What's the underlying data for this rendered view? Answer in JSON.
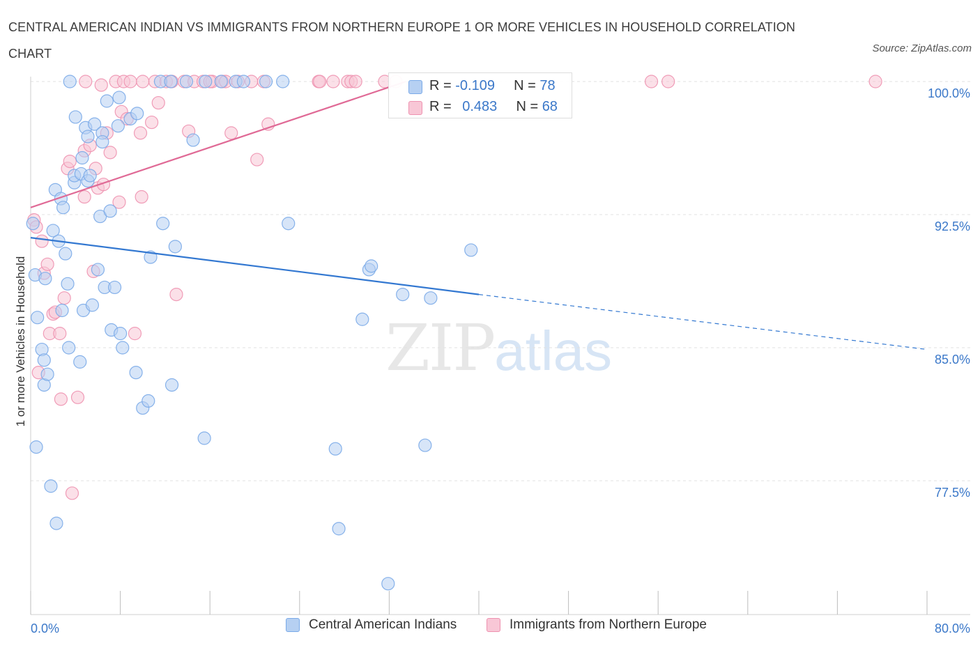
{
  "title": "CENTRAL AMERICAN INDIAN VS IMMIGRANTS FROM NORTHERN EUROPE 1 OR MORE VEHICLES IN HOUSEHOLD CORRELATION CHART",
  "source": "Source: ZipAtlas.com",
  "watermark": {
    "zip": "ZIP",
    "atlas": "atlas"
  },
  "colors": {
    "blue": "#7aaae8",
    "blue_fill": "#b6d0f2",
    "blue_line": "#3378d1",
    "pink": "#ee92b0",
    "pink_fill": "#f8c7d6",
    "pink_line": "#e06a96",
    "axis_text": "#3b78c9",
    "grid": "#e0e0e0"
  },
  "stats": [
    {
      "series": "Central American Indians",
      "r_label": "R =",
      "r_value": "-0.109",
      "n_label": "N =",
      "n_value": "78"
    },
    {
      "series": "Immigrants from Northern Europe",
      "r_label": "R =",
      "r_value": "0.483",
      "n_label": "N =",
      "n_value": "68"
    }
  ],
  "chart_data": {
    "type": "scatter",
    "title": "CENTRAL AMERICAN INDIAN VS IMMIGRANTS FROM NORTHERN EUROPE 1 OR MORE VEHICLES IN HOUSEHOLD CORRELATION CHART",
    "xlabel": "",
    "ylabel": "1 or more Vehicles in Household",
    "xlim": [
      0,
      80
    ],
    "ylim": [
      70.2,
      100.7
    ],
    "x_tick_labels": [
      "0.0%",
      "80.0%"
    ],
    "y_ticks": [
      77.5,
      85.0,
      92.5,
      100.0
    ],
    "y_tick_labels": [
      "77.5%",
      "85.0%",
      "92.5%",
      "100.0%"
    ],
    "grid": true,
    "legend": [
      "Central American Indians",
      "Immigrants from Northern Europe"
    ],
    "series": [
      {
        "name": "Central American Indians",
        "color": "#7aaae8",
        "trend": {
          "x0": 0,
          "y0": 91.2,
          "x1": 40,
          "y1": 88.0,
          "dashed_to_x": 80,
          "dashed_to_y": 84.9
        },
        "points": [
          [
            0.2,
            92.0
          ],
          [
            0.4,
            89.1
          ],
          [
            0.5,
            79.4
          ],
          [
            0.6,
            86.7
          ],
          [
            1.0,
            84.9
          ],
          [
            1.2,
            84.3
          ],
          [
            1.3,
            88.9
          ],
          [
            1.2,
            82.9
          ],
          [
            1.5,
            83.5
          ],
          [
            1.8,
            77.2
          ],
          [
            2.0,
            91.6
          ],
          [
            2.3,
            75.1
          ],
          [
            2.2,
            93.9
          ],
          [
            2.5,
            91.0
          ],
          [
            2.7,
            93.4
          ],
          [
            2.8,
            87.1
          ],
          [
            2.9,
            92.9
          ],
          [
            3.1,
            90.3
          ],
          [
            3.3,
            88.6
          ],
          [
            3.4,
            85.0
          ],
          [
            3.9,
            94.3
          ],
          [
            3.9,
            94.7
          ],
          [
            4.0,
            98.0
          ],
          [
            4.4,
            84.2
          ],
          [
            4.6,
            95.7
          ],
          [
            4.5,
            94.8
          ],
          [
            4.7,
            87.1
          ],
          [
            4.9,
            97.4
          ],
          [
            5.1,
            96.9
          ],
          [
            5.1,
            94.4
          ],
          [
            5.3,
            94.7
          ],
          [
            5.5,
            87.4
          ],
          [
            5.7,
            97.6
          ],
          [
            6.0,
            89.4
          ],
          [
            6.2,
            92.4
          ],
          [
            6.4,
            97.1
          ],
          [
            6.4,
            96.6
          ],
          [
            6.6,
            88.4
          ],
          [
            6.8,
            98.9
          ],
          [
            7.1,
            92.7
          ],
          [
            7.2,
            86.0
          ],
          [
            7.5,
            88.4
          ],
          [
            7.8,
            97.5
          ],
          [
            7.9,
            99.1
          ],
          [
            8.0,
            85.8
          ],
          [
            8.2,
            85.0
          ],
          [
            8.9,
            97.9
          ],
          [
            9.4,
            83.6
          ],
          [
            9.5,
            98.2
          ],
          [
            10.0,
            81.6
          ],
          [
            10.5,
            82.0
          ],
          [
            10.7,
            90.1
          ],
          [
            11.6,
            100.0
          ],
          [
            11.8,
            92.0
          ],
          [
            12.5,
            100.0
          ],
          [
            12.6,
            82.9
          ],
          [
            12.9,
            90.7
          ],
          [
            13.9,
            100.0
          ],
          [
            14.5,
            96.7
          ],
          [
            15.5,
            79.9
          ],
          [
            15.6,
            100.0
          ],
          [
            17.0,
            100.0
          ],
          [
            18.3,
            100.0
          ],
          [
            19.0,
            100.0
          ],
          [
            22.5,
            100.0
          ],
          [
            23.0,
            92.0
          ],
          [
            27.2,
            79.3
          ],
          [
            27.5,
            74.8
          ],
          [
            29.6,
            86.6
          ],
          [
            30.2,
            89.4
          ],
          [
            30.4,
            89.6
          ],
          [
            31.9,
            71.7
          ],
          [
            33.2,
            88.0
          ],
          [
            35.2,
            79.5
          ],
          [
            35.7,
            87.8
          ],
          [
            39.3,
            90.5
          ],
          [
            3.5,
            100.0
          ],
          [
            21.0,
            100.0
          ]
        ]
      },
      {
        "name": "Immigrants from Northern Europe",
        "color": "#ee92b0",
        "trend": {
          "x0": 0,
          "y0": 92.9,
          "x1": 33.5,
          "y1": 100.0
        },
        "points": [
          [
            0.3,
            92.2
          ],
          [
            0.5,
            91.8
          ],
          [
            0.7,
            83.6
          ],
          [
            1.0,
            91.0
          ],
          [
            1.2,
            89.2
          ],
          [
            1.5,
            89.7
          ],
          [
            1.7,
            85.8
          ],
          [
            2.0,
            86.9
          ],
          [
            2.2,
            87.0
          ],
          [
            2.6,
            85.8
          ],
          [
            2.7,
            82.1
          ],
          [
            3.0,
            87.8
          ],
          [
            3.3,
            95.1
          ],
          [
            3.5,
            95.5
          ],
          [
            3.7,
            76.8
          ],
          [
            4.2,
            82.2
          ],
          [
            4.8,
            93.5
          ],
          [
            4.8,
            96.1
          ],
          [
            5.3,
            96.4
          ],
          [
            5.6,
            89.3
          ],
          [
            5.8,
            95.1
          ],
          [
            6.0,
            94.0
          ],
          [
            6.3,
            99.8
          ],
          [
            6.5,
            94.2
          ],
          [
            6.8,
            97.1
          ],
          [
            7.1,
            96.0
          ],
          [
            7.6,
            100.0
          ],
          [
            7.9,
            93.2
          ],
          [
            8.1,
            98.3
          ],
          [
            8.3,
            100.0
          ],
          [
            8.6,
            97.9
          ],
          [
            8.9,
            100.0
          ],
          [
            9.3,
            85.8
          ],
          [
            9.8,
            97.1
          ],
          [
            9.9,
            93.5
          ],
          [
            10.0,
            100.0
          ],
          [
            10.8,
            97.7
          ],
          [
            11.1,
            100.0
          ],
          [
            11.4,
            98.8
          ],
          [
            12.1,
            100.0
          ],
          [
            12.6,
            100.0
          ],
          [
            13.0,
            88.0
          ],
          [
            13.7,
            100.0
          ],
          [
            14.1,
            97.2
          ],
          [
            14.6,
            100.0
          ],
          [
            15.4,
            100.0
          ],
          [
            16.2,
            100.0
          ],
          [
            17.1,
            100.0
          ],
          [
            17.4,
            100.0
          ],
          [
            17.9,
            97.1
          ],
          [
            18.5,
            100.0
          ],
          [
            19.7,
            100.0
          ],
          [
            20.2,
            95.6
          ],
          [
            20.8,
            100.0
          ],
          [
            21.2,
            97.6
          ],
          [
            25.7,
            100.0
          ],
          [
            25.8,
            100.0
          ],
          [
            27.0,
            100.0
          ],
          [
            28.3,
            100.0
          ],
          [
            28.6,
            100.0
          ],
          [
            29.0,
            100.0
          ],
          [
            31.6,
            100.0
          ],
          [
            32.6,
            100.0
          ],
          [
            55.4,
            100.0
          ],
          [
            56.9,
            100.0
          ],
          [
            75.4,
            100.0
          ],
          [
            4.9,
            100.0
          ],
          [
            16.0,
            100.0
          ]
        ]
      }
    ]
  }
}
